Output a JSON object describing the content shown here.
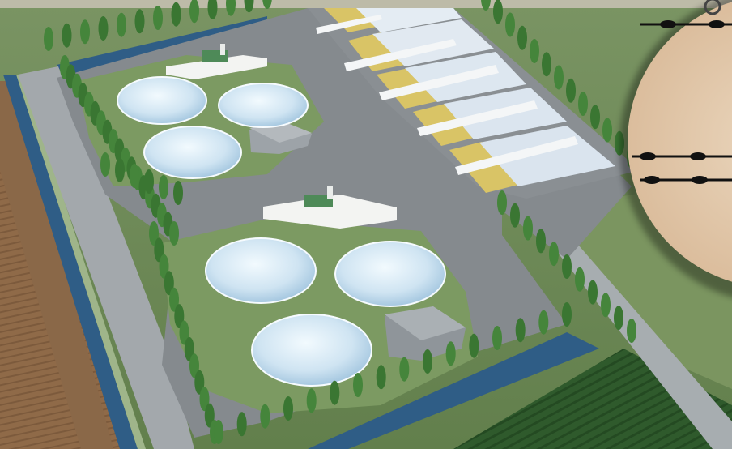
{
  "image": {
    "kind": "rendering",
    "subject": "biogas-plant-aerial-view",
    "colors": {
      "top_band": "#bdbba8",
      "field_green": "#6f8c55",
      "plowed_field": "#8f6a48",
      "road_gray": "#9aa0a6",
      "platform_gray": "#7f8387",
      "berm_green": "#7c9a62",
      "tank_blue": "#cfe4f2",
      "canal_blue": "#2f5d86",
      "tree_green": "#3e7d36",
      "silage_yellow": "#d9c466",
      "silage_white": "#e4ecf3",
      "sand_circle": "#e6cdb2"
    },
    "structures": {
      "digester_groups": 2,
      "tanks_per_group": 3,
      "silage_bunkers": 5
    }
  }
}
